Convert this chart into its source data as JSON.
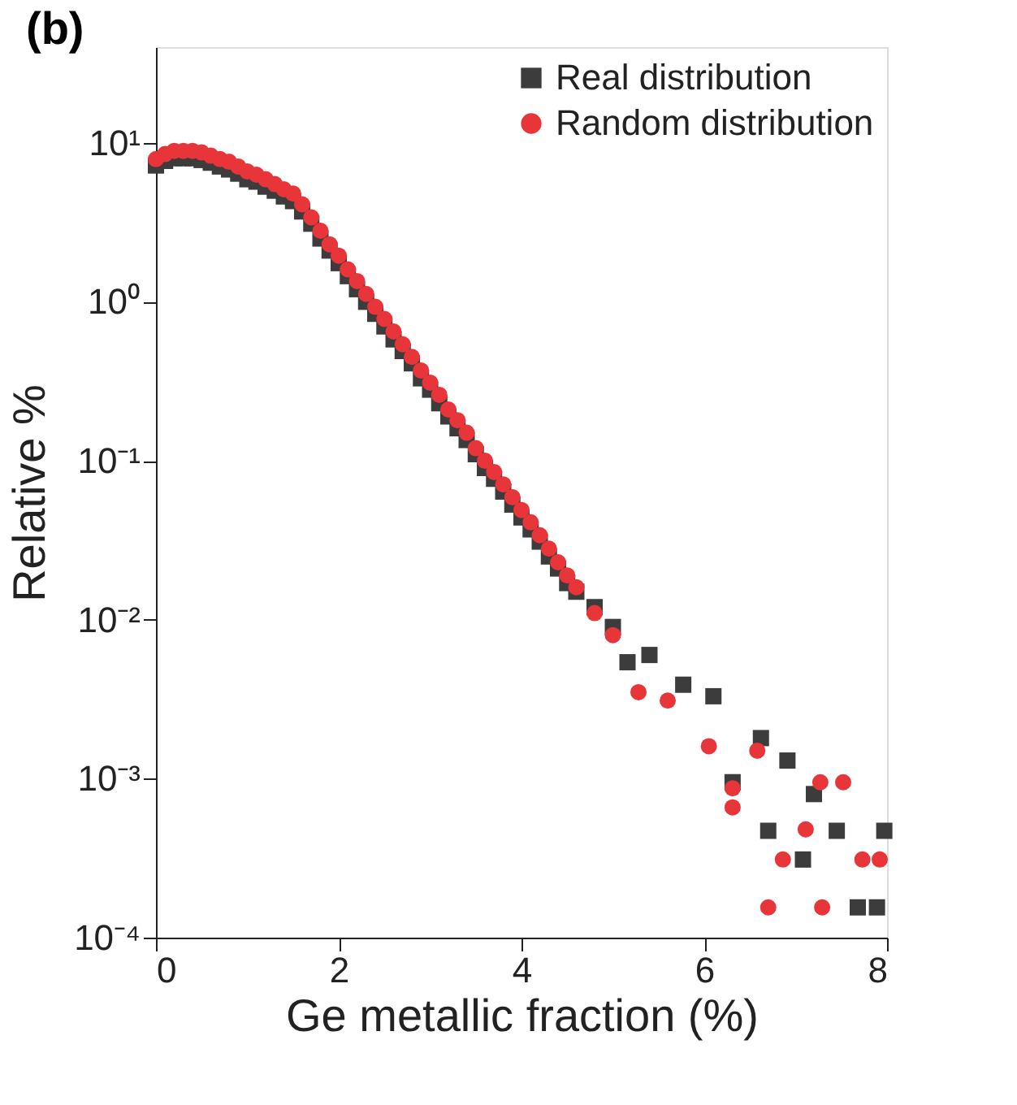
{
  "chart_data": {
    "type": "scatter",
    "title": "(b)",
    "xlabel": "Ge metallic fraction (%)",
    "ylabel": "Relative %",
    "xlim": [
      0,
      8
    ],
    "xticks": [
      0,
      2,
      4,
      6,
      8
    ],
    "ylim": [
      0.0001,
      40
    ],
    "log": "y",
    "yticks": [
      {
        "value": 0.0001,
        "label": "10⁻⁴"
      },
      {
        "value": 0.001,
        "label": "10⁻³"
      },
      {
        "value": 0.01,
        "label": "10⁻²"
      },
      {
        "value": 0.1,
        "label": "10⁻¹"
      },
      {
        "value": 1,
        "label": "10⁰"
      },
      {
        "value": 10,
        "label": "10¹"
      }
    ],
    "grid": false,
    "legend": "top right",
    "series": [
      {
        "name": "Real distribution",
        "color": "#3c3c3c",
        "marker": "square",
        "x": [
          0,
          0.1,
          0.2,
          0.3,
          0.4,
          0.5,
          0.6,
          0.7,
          0.8,
          0.9,
          1.0,
          1.1,
          1.2,
          1.3,
          1.4,
          1.5,
          1.6,
          1.7,
          1.8,
          1.9,
          2.0,
          2.1,
          2.2,
          2.3,
          2.4,
          2.5,
          2.6,
          2.7,
          2.8,
          2.9,
          3.0,
          3.1,
          3.2,
          3.3,
          3.4,
          3.5,
          3.6,
          3.7,
          3.8,
          3.9,
          4.0,
          4.1,
          4.2,
          4.3,
          4.4,
          4.5,
          4.6,
          4.8,
          5.0,
          5.16,
          5.4,
          5.77,
          6.1,
          6.31,
          6.62,
          6.7,
          6.91,
          7.08,
          7.2,
          7.45,
          7.68,
          7.89,
          7.97
        ],
        "values": [
          7.2,
          7.7,
          8.0,
          8.0,
          8.0,
          7.8,
          7.5,
          7.1,
          6.8,
          6.4,
          5.9,
          5.7,
          5.3,
          5.0,
          4.6,
          4.3,
          3.7,
          3.1,
          2.5,
          2.1,
          1.75,
          1.45,
          1.2,
          1.0,
          0.84,
          0.7,
          0.58,
          0.49,
          0.41,
          0.33,
          0.28,
          0.23,
          0.19,
          0.16,
          0.135,
          0.11,
          0.09,
          0.077,
          0.064,
          0.053,
          0.044,
          0.037,
          0.031,
          0.025,
          0.021,
          0.017,
          0.015,
          0.012,
          0.009,
          0.0054,
          0.006,
          0.0039,
          0.0033,
          0.00095,
          0.0018,
          0.00047,
          0.0013,
          0.00031,
          0.0008,
          0.00047,
          0.000155,
          0.000155,
          0.00047
        ]
      },
      {
        "name": "Random distribution",
        "color": "#e8353a",
        "marker": "circle",
        "x": [
          0,
          0.1,
          0.2,
          0.3,
          0.4,
          0.5,
          0.6,
          0.7,
          0.8,
          0.9,
          1.0,
          1.1,
          1.2,
          1.3,
          1.4,
          1.5,
          1.6,
          1.7,
          1.8,
          1.9,
          2.0,
          2.1,
          2.2,
          2.3,
          2.4,
          2.5,
          2.6,
          2.7,
          2.8,
          2.9,
          3.0,
          3.1,
          3.2,
          3.3,
          3.4,
          3.5,
          3.6,
          3.7,
          3.8,
          3.9,
          4.0,
          4.1,
          4.2,
          4.3,
          4.4,
          4.5,
          4.6,
          4.8,
          5.0,
          5.28,
          5.6,
          6.05,
          6.31,
          6.31,
          6.58,
          6.7,
          6.86,
          7.11,
          7.27,
          7.29,
          7.52,
          7.73,
          7.92
        ],
        "values": [
          7.9,
          8.5,
          8.9,
          8.9,
          8.9,
          8.7,
          8.3,
          7.9,
          7.6,
          7.1,
          6.6,
          6.3,
          5.9,
          5.5,
          5.1,
          4.8,
          4.1,
          3.4,
          2.8,
          2.3,
          1.95,
          1.6,
          1.35,
          1.12,
          0.93,
          0.78,
          0.65,
          0.54,
          0.45,
          0.37,
          0.31,
          0.26,
          0.21,
          0.18,
          0.15,
          0.12,
          0.1,
          0.085,
          0.071,
          0.059,
          0.049,
          0.041,
          0.034,
          0.028,
          0.023,
          0.019,
          0.016,
          0.011,
          0.008,
          0.0035,
          0.0031,
          0.0016,
          0.00087,
          0.00066,
          0.0015,
          0.000155,
          0.00031,
          0.00048,
          0.00095,
          0.000155,
          0.00095,
          0.00031,
          0.00031
        ]
      }
    ]
  }
}
